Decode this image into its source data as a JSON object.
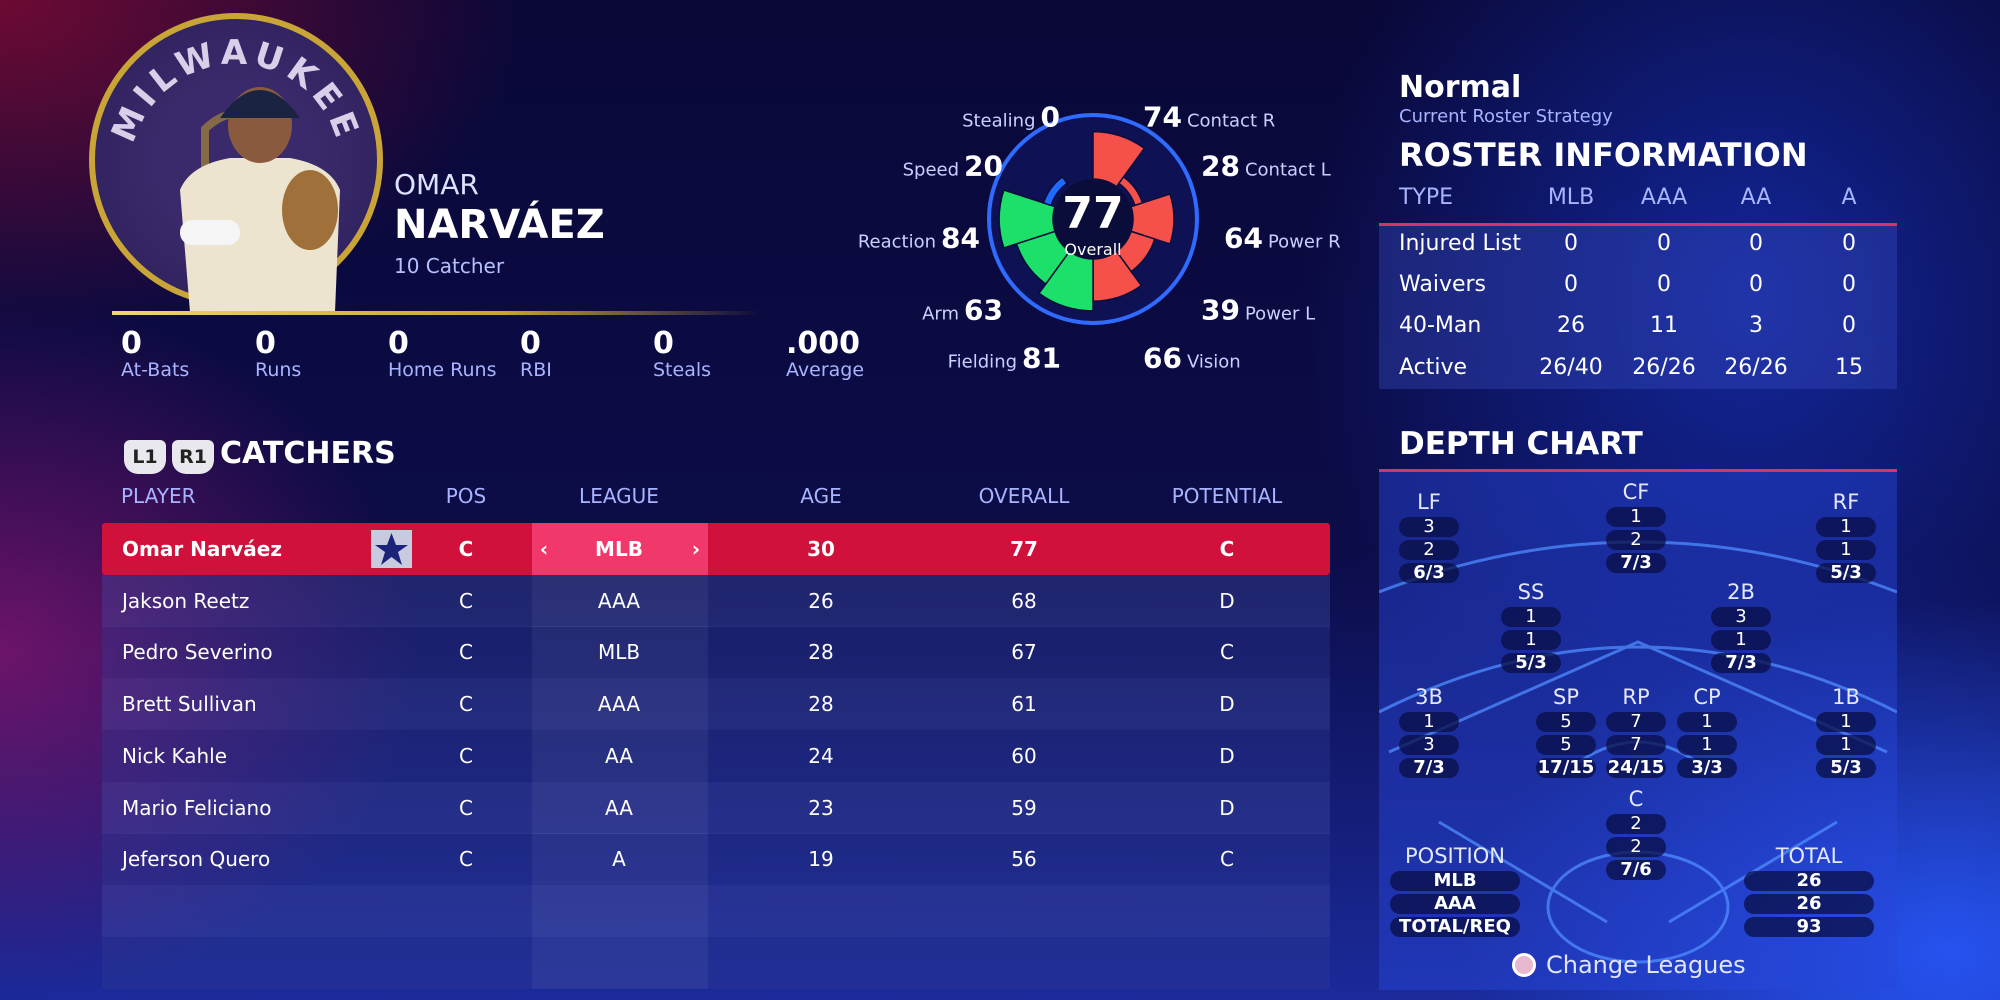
{
  "player": {
    "team_logo_text": "MILWAUKEE",
    "first_name": "OMAR",
    "last_name": "NARVÁEZ",
    "number_position": "10  Catcher"
  },
  "stats": [
    {
      "value": "0",
      "label": "At-Bats"
    },
    {
      "value": "0",
      "label": "Runs"
    },
    {
      "value": "0",
      "label": "Home Runs"
    },
    {
      "value": "0",
      "label": "RBI"
    },
    {
      "value": "0",
      "label": "Steals"
    },
    {
      "value": ".000",
      "label": "Average"
    }
  ],
  "ratings": {
    "overall": "77",
    "overall_label": "Overall",
    "attributes": [
      {
        "label": "Contact R",
        "value": 74,
        "color": "#f5504a"
      },
      {
        "label": "Contact L",
        "value": 28,
        "color": "#f5504a"
      },
      {
        "label": "Power R",
        "value": 64,
        "color": "#f5504a"
      },
      {
        "label": "Power L",
        "value": 39,
        "color": "#f5504a"
      },
      {
        "label": "Vision",
        "value": 66,
        "color": "#f5504a"
      },
      {
        "label": "Fielding",
        "value": 81,
        "color": "#1de06a"
      },
      {
        "label": "Arm",
        "value": 63,
        "color": "#1de06a"
      },
      {
        "label": "Reaction",
        "value": 84,
        "color": "#1de06a"
      },
      {
        "label": "Speed",
        "value": 20,
        "color": "#1e6bff"
      },
      {
        "label": "Stealing",
        "value": 0,
        "color": "#1e6bff"
      }
    ]
  },
  "catchers": {
    "l1": "L1",
    "r1": "R1",
    "title": "CATCHERS",
    "headers": [
      "PLAYER",
      "POS",
      "LEAGUE",
      "AGE",
      "OVERALL",
      "POTENTIAL"
    ],
    "rows": [
      [
        "Omar Narváez",
        "C",
        "MLB",
        "30",
        "77",
        "C"
      ],
      [
        "Jakson Reetz",
        "C",
        "AAA",
        "26",
        "68",
        "D"
      ],
      [
        "Pedro Severino",
        "C",
        "MLB",
        "28",
        "67",
        "C"
      ],
      [
        "Brett Sullivan",
        "C",
        "AAA",
        "28",
        "61",
        "D"
      ],
      [
        "Nick Kahle",
        "C",
        "AA",
        "24",
        "60",
        "D"
      ],
      [
        "Mario Feliciano",
        "C",
        "AA",
        "23",
        "59",
        "D"
      ],
      [
        "Jeferson Quero",
        "C",
        "A",
        "19",
        "56",
        "C"
      ]
    ],
    "prev_arrow": "‹",
    "next_arrow": "›",
    "selected_color": "#d0113c"
  },
  "roster": {
    "strategy": "Normal",
    "strategy_label": "Current Roster Strategy",
    "title": "ROSTER INFORMATION",
    "headers": [
      "TYPE",
      "MLB",
      "AAA",
      "AA",
      "A"
    ],
    "rows": [
      [
        "Injured List",
        "0",
        "0",
        "0",
        "0"
      ],
      [
        "Waivers",
        "0",
        "0",
        "0",
        "0"
      ],
      [
        "40-Man",
        "26",
        "11",
        "3",
        "0"
      ],
      [
        "Active",
        "26/40",
        "26/26",
        "26/26",
        "15"
      ]
    ]
  },
  "depth": {
    "title": "DEPTH CHART",
    "positions": [
      {
        "pos": "LF",
        "v": [
          "3",
          "2",
          "6/3"
        ]
      },
      {
        "pos": "CF",
        "v": [
          "1",
          "2",
          "7/3"
        ]
      },
      {
        "pos": "RF",
        "v": [
          "1",
          "1",
          "5/3"
        ]
      },
      {
        "pos": "SS",
        "v": [
          "1",
          "1",
          "5/3"
        ]
      },
      {
        "pos": "2B",
        "v": [
          "3",
          "1",
          "7/3"
        ]
      },
      {
        "pos": "3B",
        "v": [
          "1",
          "3",
          "7/3"
        ]
      },
      {
        "pos": "SP",
        "v": [
          "5",
          "5",
          "17/15"
        ]
      },
      {
        "pos": "RP",
        "v": [
          "7",
          "7",
          "24/15"
        ]
      },
      {
        "pos": "CP",
        "v": [
          "1",
          "1",
          "3/3"
        ]
      },
      {
        "pos": "1B",
        "v": [
          "1",
          "1",
          "5/3"
        ]
      },
      {
        "pos": "C",
        "v": [
          "2",
          "2",
          "7/6"
        ]
      }
    ],
    "legend": {
      "label": "POSITION",
      "v": [
        "MLB",
        "AAA",
        "TOTAL/REQ"
      ]
    },
    "total": {
      "label": "TOTAL",
      "v": [
        "26",
        "26",
        "93"
      ]
    },
    "change_leagues": "Change Leagues"
  }
}
